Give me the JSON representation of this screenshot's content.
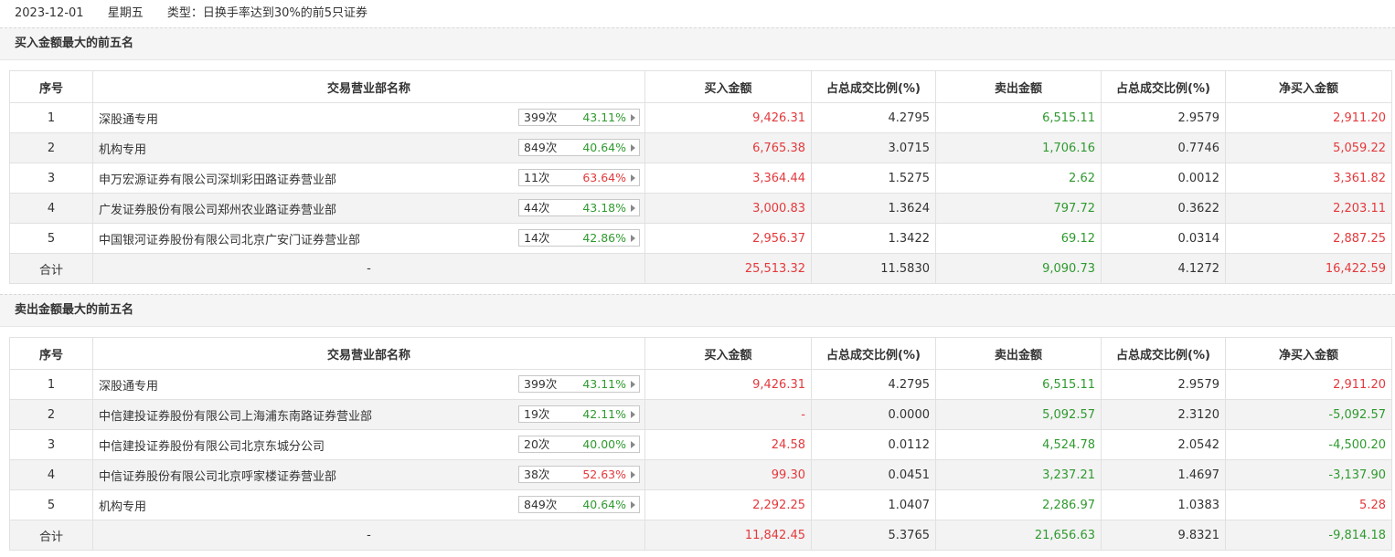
{
  "header": {
    "date": "2023-12-01",
    "weekday": "星期五",
    "type_label": "类型：",
    "type_value": "日换手率达到30%的前5只证券"
  },
  "columns": [
    "序号",
    "交易营业部名称",
    "买入金额",
    "占总成交比例(%)",
    "卖出金额",
    "占总成交比例(%)",
    "净买入金额"
  ],
  "colors": {
    "red": "#e4393c",
    "green": "#2f9a2f"
  },
  "icons": {
    "badge_arrow": "caret-right-icon"
  },
  "buy_section": {
    "title": "买入金额最大的前五名",
    "rows": [
      {
        "idx": "1",
        "name": "深股通专用",
        "count": "399次",
        "pct": "43.11%",
        "pct_color": "green",
        "buy": "9,426.31",
        "buy_ratio": "4.2795",
        "sell": "6,515.11",
        "sell_ratio": "2.9579",
        "net": "2,911.20",
        "net_color": "red"
      },
      {
        "idx": "2",
        "name": "机构专用",
        "count": "849次",
        "pct": "40.64%",
        "pct_color": "green",
        "buy": "6,765.38",
        "buy_ratio": "3.0715",
        "sell": "1,706.16",
        "sell_ratio": "0.7746",
        "net": "5,059.22",
        "net_color": "red"
      },
      {
        "idx": "3",
        "name": "申万宏源证券有限公司深圳彩田路证券营业部",
        "count": "11次",
        "pct": "63.64%",
        "pct_color": "red",
        "buy": "3,364.44",
        "buy_ratio": "1.5275",
        "sell": "2.62",
        "sell_ratio": "0.0012",
        "net": "3,361.82",
        "net_color": "red"
      },
      {
        "idx": "4",
        "name": "广发证券股份有限公司郑州农业路证券营业部",
        "count": "44次",
        "pct": "43.18%",
        "pct_color": "green",
        "buy": "3,000.83",
        "buy_ratio": "1.3624",
        "sell": "797.72",
        "sell_ratio": "0.3622",
        "net": "2,203.11",
        "net_color": "red"
      },
      {
        "idx": "5",
        "name": "中国银河证券股份有限公司北京广安门证券营业部",
        "count": "14次",
        "pct": "42.86%",
        "pct_color": "green",
        "buy": "2,956.37",
        "buy_ratio": "1.3422",
        "sell": "69.12",
        "sell_ratio": "0.0314",
        "net": "2,887.25",
        "net_color": "red"
      }
    ],
    "total": {
      "label": "合计",
      "name": "-",
      "buy": "25,513.32",
      "buy_ratio": "11.5830",
      "sell": "9,090.73",
      "sell_ratio": "4.1272",
      "net": "16,422.59",
      "net_color": "red"
    }
  },
  "sell_section": {
    "title": "卖出金额最大的前五名",
    "rows": [
      {
        "idx": "1",
        "name": "深股通专用",
        "count": "399次",
        "pct": "43.11%",
        "pct_color": "green",
        "buy": "9,426.31",
        "buy_ratio": "4.2795",
        "sell": "6,515.11",
        "sell_ratio": "2.9579",
        "net": "2,911.20",
        "net_color": "red"
      },
      {
        "idx": "2",
        "name": "中信建投证券股份有限公司上海浦东南路证券营业部",
        "count": "19次",
        "pct": "42.11%",
        "pct_color": "green",
        "buy": "-",
        "buy_ratio": "0.0000",
        "sell": "5,092.57",
        "sell_ratio": "2.3120",
        "net": "-5,092.57",
        "net_color": "green"
      },
      {
        "idx": "3",
        "name": "中信建投证券股份有限公司北京东城分公司",
        "count": "20次",
        "pct": "40.00%",
        "pct_color": "green",
        "buy": "24.58",
        "buy_ratio": "0.0112",
        "sell": "4,524.78",
        "sell_ratio": "2.0542",
        "net": "-4,500.20",
        "net_color": "green"
      },
      {
        "idx": "4",
        "name": "中信证券股份有限公司北京呼家楼证券营业部",
        "count": "38次",
        "pct": "52.63%",
        "pct_color": "red",
        "buy": "99.30",
        "buy_ratio": "0.0451",
        "sell": "3,237.21",
        "sell_ratio": "1.4697",
        "net": "-3,137.90",
        "net_color": "green"
      },
      {
        "idx": "5",
        "name": "机构专用",
        "count": "849次",
        "pct": "40.64%",
        "pct_color": "green",
        "buy": "2,292.25",
        "buy_ratio": "1.0407",
        "sell": "2,286.97",
        "sell_ratio": "1.0383",
        "net": "5.28",
        "net_color": "red"
      }
    ],
    "total": {
      "label": "合计",
      "name": "-",
      "buy": "11,842.45",
      "buy_ratio": "5.3765",
      "sell": "21,656.63",
      "sell_ratio": "9.8321",
      "net": "-9,814.18",
      "net_color": "green"
    }
  }
}
